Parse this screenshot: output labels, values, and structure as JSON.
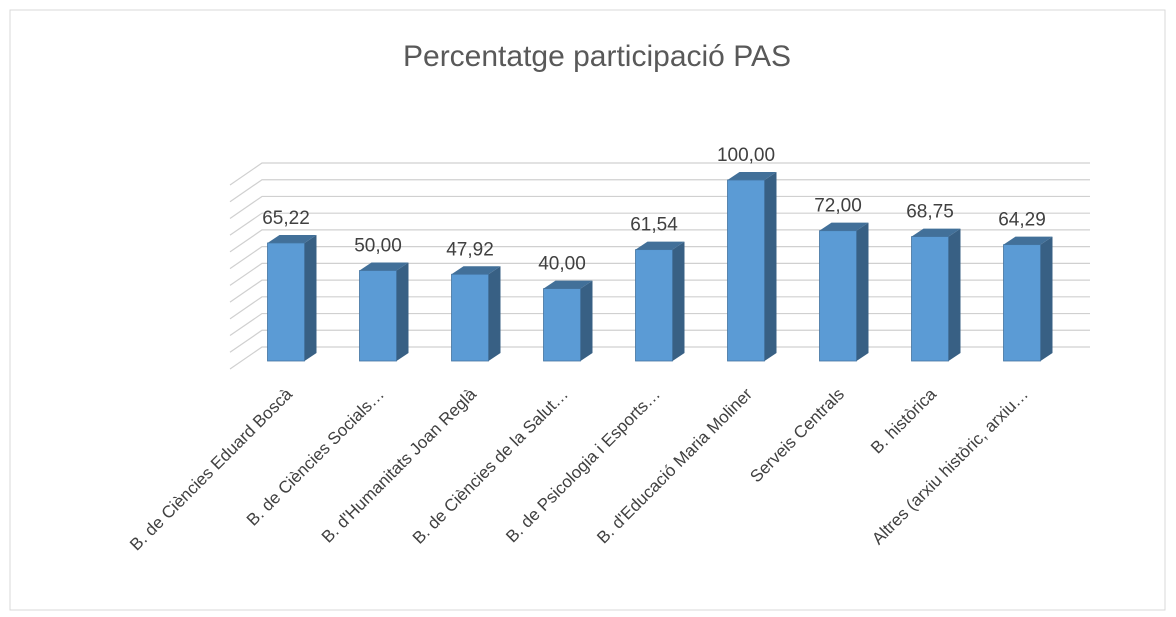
{
  "chart_data": {
    "type": "bar3d",
    "title": "Percentatge participació PAS",
    "categories": [
      "B. de Ciències Eduard Boscà",
      "B. de Ciències Socials…",
      "B. d'Humanitats Joan Reglà",
      "B. de Ciències de la Salut…",
      "B. de Psicologia i Esports…",
      "B. d'Educació Maria Moliner",
      "Serveis Centrals",
      "B. històrica",
      "Altres (arxiu històric, arxiu…"
    ],
    "values": [
      65.22,
      50.0,
      47.92,
      40.0,
      61.54,
      100.0,
      72.0,
      68.75,
      64.29
    ],
    "value_labels": [
      "65,22",
      "50,00",
      "47,92",
      "40,00",
      "61,54",
      "100,00",
      "72,00",
      "68,75",
      "64,29"
    ],
    "color": "#5b9bd5",
    "ylim": [
      0,
      110
    ],
    "yticks": [
      0,
      10,
      20,
      30,
      40,
      50,
      60,
      70,
      80,
      90,
      100,
      110
    ],
    "grid": true
  }
}
